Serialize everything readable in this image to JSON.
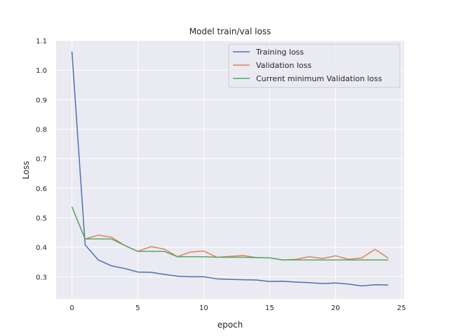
{
  "chart_data": {
    "type": "line",
    "title": "Model train/val loss",
    "xlabel": "epoch",
    "ylabel": "Loss",
    "xlim": [
      -1.2,
      25.2
    ],
    "ylim": [
      0.225,
      1.1
    ],
    "xticks": [
      0,
      5,
      10,
      15,
      20,
      25
    ],
    "yticks": [
      0.3,
      0.4,
      0.5,
      0.6,
      0.7,
      0.8,
      0.9,
      1.0,
      1.1
    ],
    "ytick_labels": [
      "0.3",
      "0.4",
      "0.5",
      "0.6",
      "0.7",
      "0.8",
      "0.9",
      "1.0",
      "1.1"
    ],
    "grid": true,
    "legend_position": "top-right",
    "background": "#eaeaf2",
    "x": [
      0,
      1,
      2,
      3,
      4,
      5,
      6,
      7,
      8,
      9,
      10,
      11,
      12,
      13,
      14,
      15,
      16,
      17,
      18,
      19,
      20,
      21,
      22,
      23,
      24
    ],
    "series": [
      {
        "name": "Training loss",
        "color": "#4c72b0",
        "values": [
          1.063,
          0.408,
          0.357,
          0.337,
          0.328,
          0.316,
          0.315,
          0.308,
          0.302,
          0.3,
          0.3,
          0.293,
          0.291,
          0.29,
          0.289,
          0.284,
          0.285,
          0.282,
          0.28,
          0.277,
          0.279,
          0.275,
          0.269,
          0.273,
          0.272
        ]
      },
      {
        "name": "Validation loss",
        "color": "#dd8452",
        "values": [
          0.537,
          0.428,
          0.441,
          0.434,
          0.406,
          0.386,
          0.402,
          0.394,
          0.368,
          0.384,
          0.387,
          0.366,
          0.369,
          0.372,
          0.365,
          0.364,
          0.357,
          0.359,
          0.368,
          0.362,
          0.371,
          0.359,
          0.364,
          0.393,
          0.363
        ]
      },
      {
        "name": "Current minimum Validation loss",
        "color": "#55a868",
        "values": [
          0.537,
          0.428,
          0.428,
          0.428,
          0.406,
          0.386,
          0.386,
          0.386,
          0.368,
          0.368,
          0.368,
          0.366,
          0.366,
          0.366,
          0.365,
          0.364,
          0.357,
          0.357,
          0.357,
          0.357,
          0.357,
          0.357,
          0.357,
          0.357,
          0.357
        ]
      }
    ]
  }
}
